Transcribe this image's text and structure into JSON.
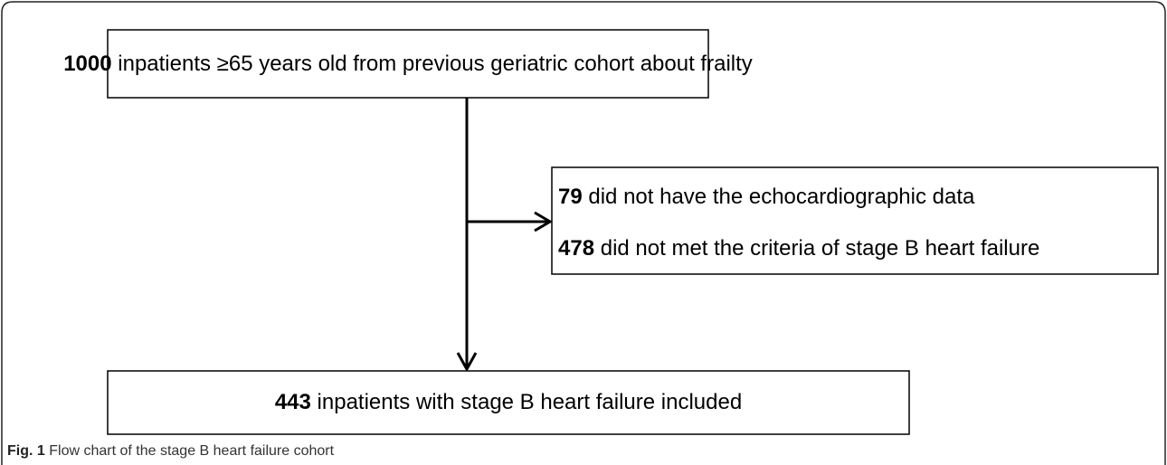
{
  "nodes": [
    {
      "count": 1000,
      "text": "inpatients ≥65 years old  from previous geriatric cohort about frailty"
    },
    {
      "lines": [
        {
          "count": 79,
          "text": "did not have the echocardiographic data"
        },
        {
          "count": 478,
          "text": "did not met the  criteria of stage B heart failure"
        }
      ]
    },
    {
      "count": 443,
      "text": "inpatients with stage B heart failure included"
    }
  ],
  "caption": {
    "label": "Fig. 1",
    "text": "Flow chart of the stage B heart failure cohort"
  }
}
